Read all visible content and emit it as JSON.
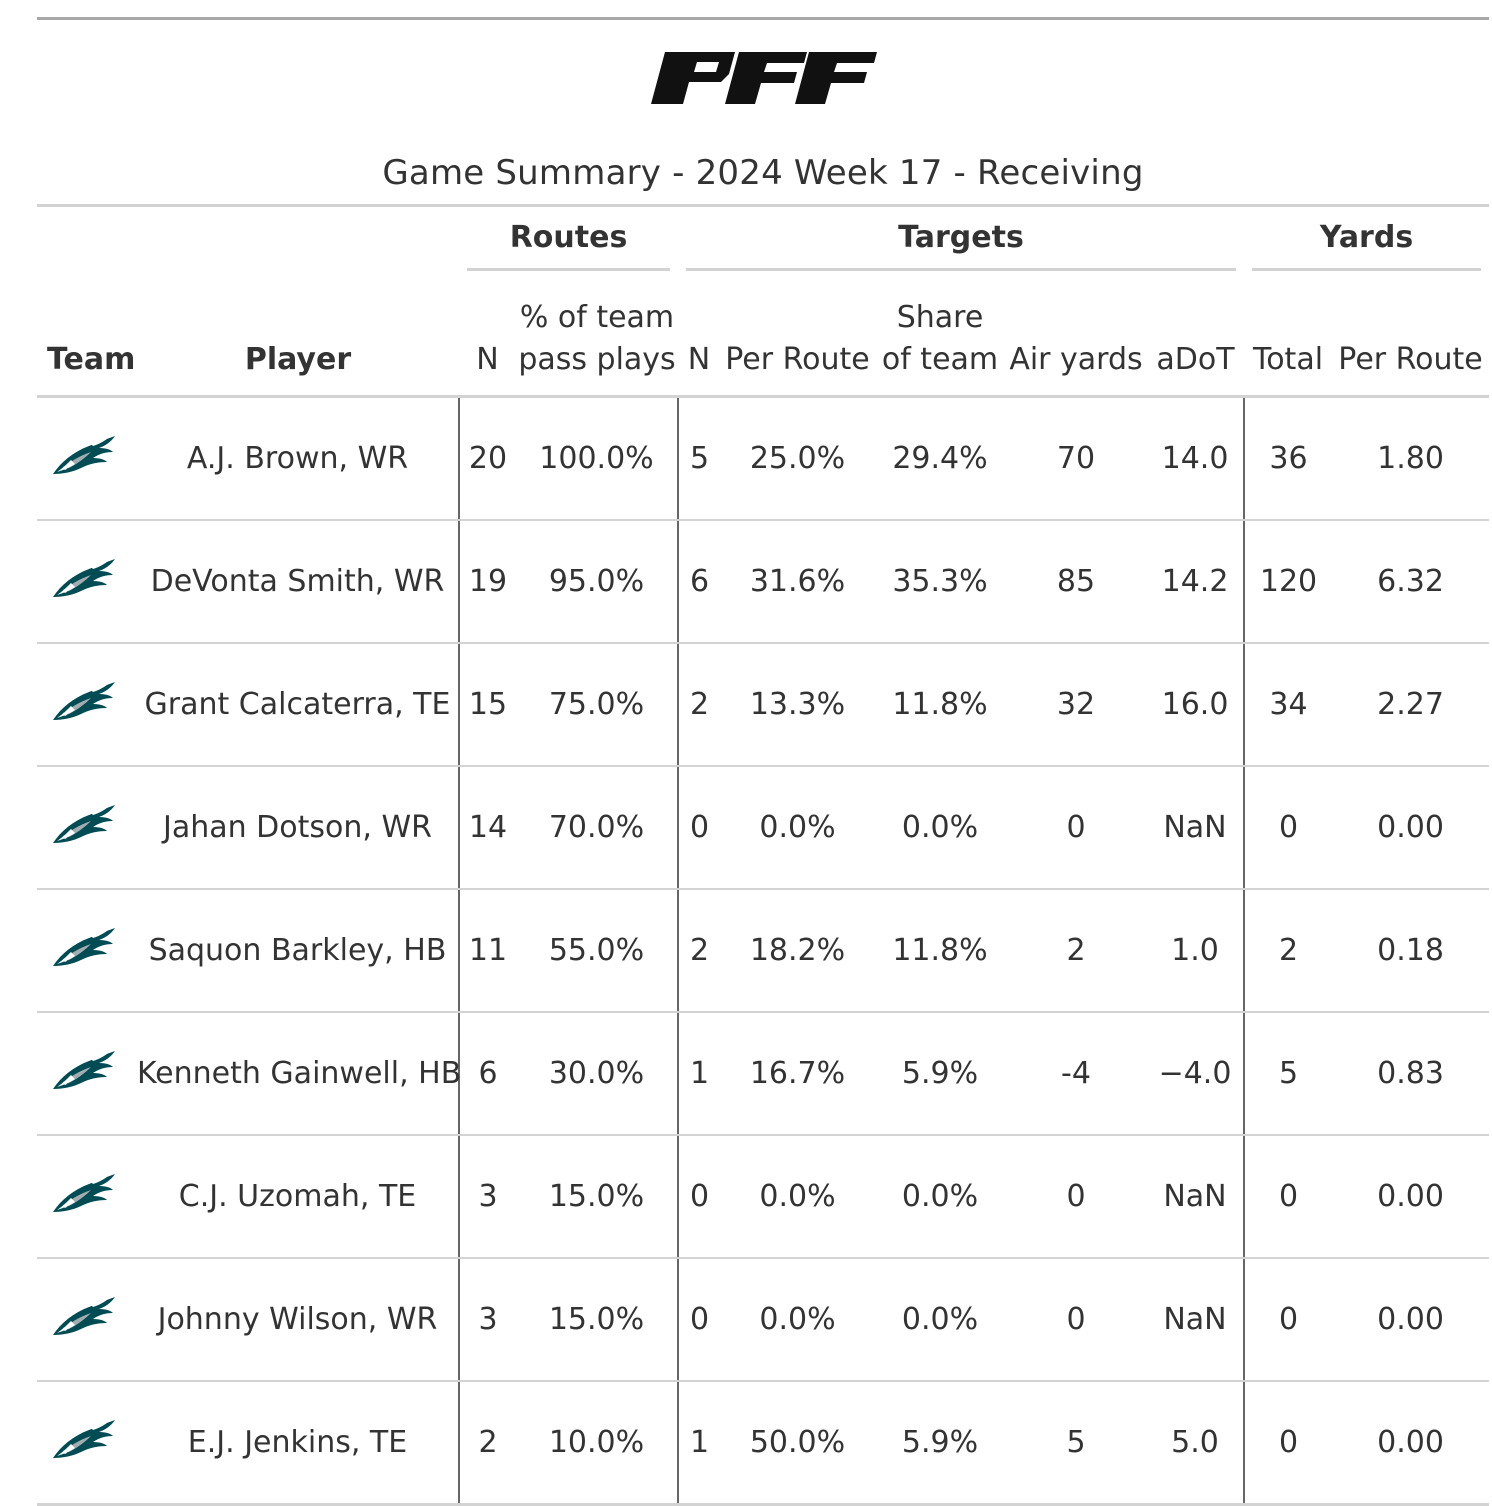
{
  "logo": {
    "text": "PFF"
  },
  "subtitle": "Game Summary - 2024 Week 17 - Receiving",
  "spanners": {
    "routes": "Routes",
    "targets": "Targets",
    "yards": "Yards"
  },
  "columns": {
    "team": "Team",
    "player": "Player",
    "routes_n": "N",
    "routes_pct_line1": "% of team",
    "routes_pct_line2": "pass plays",
    "targets_n": "N",
    "targets_per_route": "Per Route",
    "targets_share_line1": "Share",
    "targets_share_line2": "of team",
    "air_yards": "Air yards",
    "adot": "aDoT",
    "yards_total": "Total",
    "yards_per_route": "Per Route"
  },
  "team_icon": "philadelphia-eagles-logo-icon",
  "colors": {
    "eagles_green": "#004C54",
    "eagles_silver": "#A5ACAF",
    "rule": "#d3d3d3",
    "separator": "#666666"
  },
  "rows": [
    {
      "player": "A.J. Brown, WR",
      "routes_n": "20",
      "routes_pct": "100.0%",
      "targets_n": "5",
      "targets_per_route": "25.0%",
      "targets_share": "29.4%",
      "air_yards": "70",
      "adot": "14.0",
      "yards_total": "36",
      "yards_per_route": "1.80"
    },
    {
      "player": "DeVonta Smith, WR",
      "routes_n": "19",
      "routes_pct": "95.0%",
      "targets_n": "6",
      "targets_per_route": "31.6%",
      "targets_share": "35.3%",
      "air_yards": "85",
      "adot": "14.2",
      "yards_total": "120",
      "yards_per_route": "6.32"
    },
    {
      "player": "Grant Calcaterra, TE",
      "routes_n": "15",
      "routes_pct": "75.0%",
      "targets_n": "2",
      "targets_per_route": "13.3%",
      "targets_share": "11.8%",
      "air_yards": "32",
      "adot": "16.0",
      "yards_total": "34",
      "yards_per_route": "2.27"
    },
    {
      "player": "Jahan Dotson, WR",
      "routes_n": "14",
      "routes_pct": "70.0%",
      "targets_n": "0",
      "targets_per_route": "0.0%",
      "targets_share": "0.0%",
      "air_yards": "0",
      "adot": "NaN",
      "yards_total": "0",
      "yards_per_route": "0.00"
    },
    {
      "player": "Saquon Barkley, HB",
      "routes_n": "11",
      "routes_pct": "55.0%",
      "targets_n": "2",
      "targets_per_route": "18.2%",
      "targets_share": "11.8%",
      "air_yards": "2",
      "adot": "1.0",
      "yards_total": "2",
      "yards_per_route": "0.18"
    },
    {
      "player": "Kenneth Gainwell, HB",
      "routes_n": "6",
      "routes_pct": "30.0%",
      "targets_n": "1",
      "targets_per_route": "16.7%",
      "targets_share": "5.9%",
      "air_yards": "-4",
      "adot": "−4.0",
      "yards_total": "5",
      "yards_per_route": "0.83"
    },
    {
      "player": "C.J. Uzomah, TE",
      "routes_n": "3",
      "routes_pct": "15.0%",
      "targets_n": "0",
      "targets_per_route": "0.0%",
      "targets_share": "0.0%",
      "air_yards": "0",
      "adot": "NaN",
      "yards_total": "0",
      "yards_per_route": "0.00"
    },
    {
      "player": "Johnny Wilson, WR",
      "routes_n": "3",
      "routes_pct": "15.0%",
      "targets_n": "0",
      "targets_per_route": "0.0%",
      "targets_share": "0.0%",
      "air_yards": "0",
      "adot": "NaN",
      "yards_total": "0",
      "yards_per_route": "0.00"
    },
    {
      "player": "E.J. Jenkins, TE",
      "routes_n": "2",
      "routes_pct": "10.0%",
      "targets_n": "1",
      "targets_per_route": "50.0%",
      "targets_share": "5.9%",
      "air_yards": "5",
      "adot": "5.0",
      "yards_total": "0",
      "yards_per_route": "0.00"
    }
  ]
}
